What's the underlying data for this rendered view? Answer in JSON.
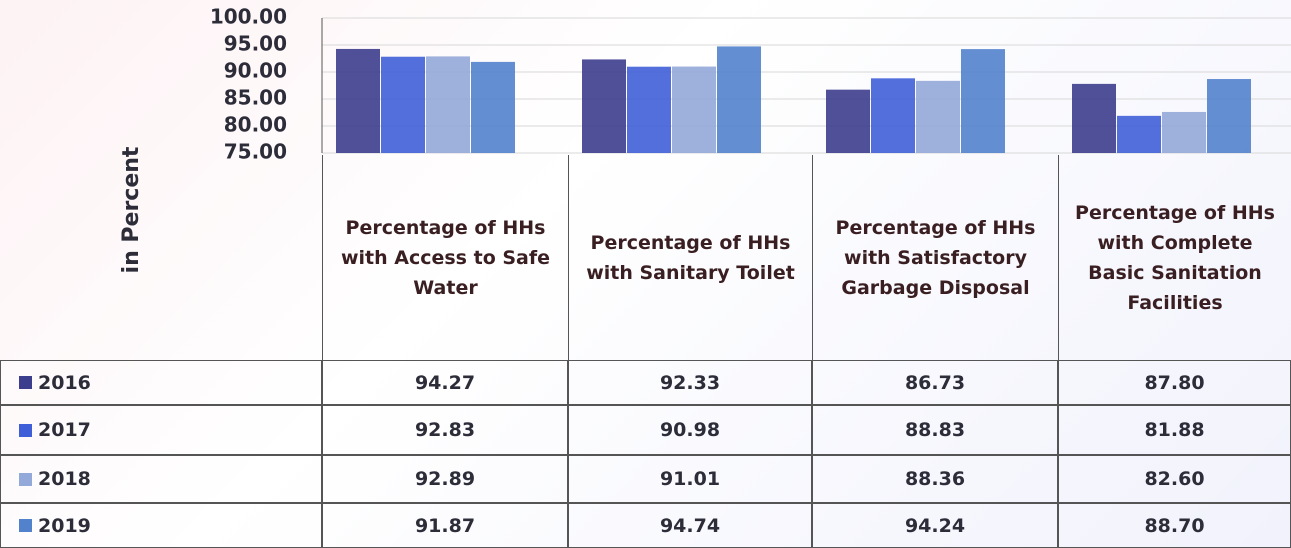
{
  "chart_data": {
    "type": "bar",
    "y_label": "in Percent",
    "categories": [
      "Percentage of HHs with Access to Safe Water",
      "Percentage of HHs with Sanitary Toilet",
      "Percentage of HHs with Satisfactory Garbage Disposal",
      "Percentage of HHs with Complete Basic Sanitation Facilities"
    ],
    "series": [
      {
        "name": "2016",
        "color": "#3c3d8c",
        "values": [
          94.27,
          92.33,
          86.73,
          87.8
        ],
        "value_labels": [
          "94.27",
          "92.33",
          "86.73",
          "87.80"
        ]
      },
      {
        "name": "2017",
        "color": "#3f5fd8",
        "values": [
          92.83,
          90.98,
          88.83,
          81.88
        ],
        "value_labels": [
          "92.83",
          "90.98",
          "88.83",
          "81.88"
        ]
      },
      {
        "name": "2018",
        "color": "#93a9d9",
        "values": [
          92.89,
          91.01,
          88.36,
          82.6
        ],
        "value_labels": [
          "92.89",
          "91.01",
          "88.36",
          "82.60"
        ]
      },
      {
        "name": "2019",
        "color": "#5282cc",
        "values": [
          91.87,
          94.74,
          94.24,
          88.7
        ],
        "value_labels": [
          "91.87",
          "94.74",
          "94.24",
          "88.70"
        ]
      }
    ],
    "ylim": [
      75,
      100
    ],
    "yticks": [
      {
        "value": 75,
        "label": "75.00"
      },
      {
        "value": 80,
        "label": "80.00"
      },
      {
        "value": 85,
        "label": "85.00"
      },
      {
        "value": 90,
        "label": "90.00"
      },
      {
        "value": 95,
        "label": "95.00"
      },
      {
        "value": 100,
        "label": "100.00"
      }
    ],
    "grid": true
  }
}
